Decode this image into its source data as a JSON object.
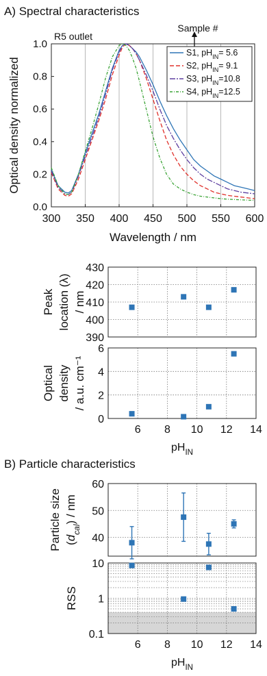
{
  "section_a": {
    "title": "A) Spectral characteristics"
  },
  "section_b": {
    "title": "B) Particle characteristics"
  },
  "chart_data": [
    {
      "id": "spectra",
      "type": "line",
      "xlabel": "Wavelength / nm",
      "ylabel": "Optical density normalized",
      "xlim": [
        300,
        600
      ],
      "ylim": [
        0,
        1.0
      ],
      "xticks": [
        300,
        350,
        400,
        450,
        500,
        550,
        600
      ],
      "yticks": [
        0.0,
        0.2,
        0.4,
        0.6,
        0.8,
        1.0
      ],
      "ytick_labels": [
        "0.0",
        "0.2",
        "0.4",
        "0.6",
        "0.8",
        "1.0"
      ],
      "grid": "vertical",
      "legend_position": "top-right",
      "annotations": [
        "R5 outlet",
        "Sample #"
      ],
      "x": [
        300,
        310,
        320,
        325,
        330,
        340,
        350,
        360,
        370,
        380,
        390,
        400,
        405,
        410,
        415,
        420,
        425,
        430,
        440,
        450,
        460,
        470,
        480,
        490,
        500,
        510,
        520,
        530,
        540,
        550,
        560,
        570,
        580,
        590,
        600
      ],
      "series": [
        {
          "name_parts": [
            "S1, pH",
            "IN",
            "=  5.6"
          ],
          "color": "#2e75b6",
          "dash": "solid",
          "values": [
            0.23,
            0.13,
            0.09,
            0.085,
            0.1,
            0.2,
            0.33,
            0.45,
            0.57,
            0.71,
            0.85,
            0.96,
            0.99,
            1.0,
            0.99,
            0.97,
            0.95,
            0.92,
            0.84,
            0.75,
            0.65,
            0.56,
            0.48,
            0.41,
            0.35,
            0.29,
            0.25,
            0.22,
            0.19,
            0.17,
            0.15,
            0.13,
            0.12,
            0.11,
            0.1
          ]
        },
        {
          "name_parts": [
            "S2, pH",
            "IN",
            "=  9.1"
          ],
          "color": "#e0312b",
          "dash": "6,3",
          "values": [
            0.21,
            0.11,
            0.07,
            0.065,
            0.08,
            0.17,
            0.29,
            0.41,
            0.53,
            0.66,
            0.81,
            0.93,
            0.98,
            1.0,
            0.99,
            0.97,
            0.94,
            0.9,
            0.79,
            0.66,
            0.53,
            0.41,
            0.32,
            0.25,
            0.2,
            0.16,
            0.13,
            0.11,
            0.09,
            0.08,
            0.07,
            0.065,
            0.06,
            0.055,
            0.05
          ]
        },
        {
          "name_parts": [
            "S3, pH",
            "IN",
            "=10.8"
          ],
          "color": "#5d3fa0",
          "dash": "8,2,2,2",
          "values": [
            0.22,
            0.12,
            0.08,
            0.075,
            0.09,
            0.19,
            0.31,
            0.43,
            0.55,
            0.69,
            0.84,
            0.95,
            0.99,
            1.0,
            0.99,
            0.97,
            0.94,
            0.9,
            0.81,
            0.71,
            0.6,
            0.5,
            0.42,
            0.35,
            0.29,
            0.24,
            0.2,
            0.17,
            0.15,
            0.13,
            0.11,
            0.1,
            0.09,
            0.085,
            0.08
          ]
        },
        {
          "name_parts": [
            "S4, pH",
            "IN",
            "=12.5"
          ],
          "color": "#3aa335",
          "dash": "4,2,1,2",
          "values": [
            0.24,
            0.13,
            0.08,
            0.075,
            0.09,
            0.2,
            0.34,
            0.48,
            0.63,
            0.79,
            0.92,
            0.99,
            1.0,
            0.99,
            0.96,
            0.91,
            0.85,
            0.77,
            0.6,
            0.43,
            0.3,
            0.2,
            0.14,
            0.11,
            0.09,
            0.075,
            0.065,
            0.06,
            0.055,
            0.05,
            0.047,
            0.045,
            0.043,
            0.041,
            0.04
          ]
        }
      ]
    },
    {
      "id": "peak",
      "type": "scatter",
      "ylabel_lines": [
        "Peak",
        "location (λ)",
        "/ nm"
      ],
      "xlim": [
        4,
        14
      ],
      "ylim": [
        390,
        430
      ],
      "yticks": [
        390,
        400,
        410,
        420,
        430
      ],
      "grid": "both",
      "x": [
        5.6,
        9.1,
        10.8,
        12.5
      ],
      "y": [
        407,
        413,
        407,
        417
      ]
    },
    {
      "id": "od",
      "type": "scatter",
      "ylabel_lines": [
        "Optical",
        "density",
        "/ a.u. cm⁻¹"
      ],
      "xlabel_parts": [
        "pH",
        "IN"
      ],
      "xlim": [
        4,
        14
      ],
      "ylim": [
        0,
        6
      ],
      "xticks": [
        6,
        8,
        10,
        12,
        14
      ],
      "yticks": [
        0,
        2,
        4,
        6
      ],
      "grid": "both",
      "x": [
        5.6,
        9.1,
        10.8,
        12.5
      ],
      "y": [
        0.4,
        0.15,
        1.0,
        5.5
      ]
    },
    {
      "id": "size",
      "type": "scatter",
      "ylabel_lines": [
        "Particle size",
        "(d_cal) / nm"
      ],
      "xlim": [
        4,
        14
      ],
      "ylim": [
        33,
        60
      ],
      "yticks": [
        40,
        50,
        60
      ],
      "grid": "both",
      "x": [
        5.6,
        9.1,
        10.8,
        12.5
      ],
      "y": [
        38,
        47.5,
        37.5,
        45
      ],
      "yerr": [
        6,
        9,
        4,
        1.5
      ]
    },
    {
      "id": "rss",
      "type": "scatter",
      "ylabel": "RSS",
      "xlabel_parts": [
        "pH",
        "IN"
      ],
      "scale": "log",
      "xlim": [
        4,
        14
      ],
      "ylim": [
        0.1,
        10
      ],
      "xticks": [
        6,
        8,
        10,
        12,
        14
      ],
      "yticks": [
        0.1,
        1,
        10
      ],
      "shaded_below": 0.4,
      "grid": "both",
      "x": [
        5.6,
        9.1,
        10.8,
        12.5
      ],
      "y": [
        8.5,
        0.95,
        7.5,
        0.5
      ]
    }
  ]
}
